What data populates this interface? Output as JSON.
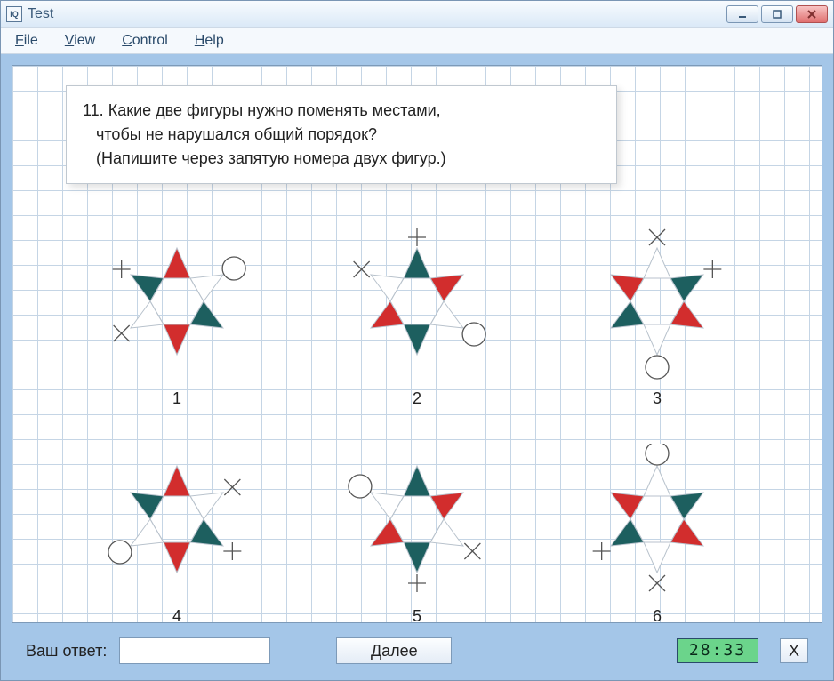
{
  "titlebar": {
    "app_icon_text": "IQ",
    "title": "Test"
  },
  "menu": {
    "file": "File",
    "view": "View",
    "control": "Control",
    "help": "Help"
  },
  "question": {
    "number": "11.",
    "line1": "Какие две фигуры нужно поменять местами,",
    "line2": "чтобы не нарушался общий порядок?",
    "line3": "(Напишите через запятую номера двух фигур.)"
  },
  "answer_label": "Ваш ответ:",
  "answer_value": "",
  "next_label": "Далее",
  "timer": "28:33",
  "close_x": "X",
  "colors": {
    "red": "#d22d2d",
    "teal": "#1d5f5f",
    "white": "#ffffff",
    "outline": "#b8c2cc",
    "circle_stroke": "#555"
  },
  "figures": {
    "labels": [
      "1",
      "2",
      "3",
      "4",
      "5",
      "6"
    ],
    "rotation_deg": [
      0,
      60,
      120,
      180,
      240,
      300
    ],
    "point_fills": [
      "red",
      "white",
      "teal",
      "red",
      "white",
      "teal"
    ],
    "circle_point_index": 1,
    "x_point_index": 4,
    "plus_point_index": 5
  }
}
